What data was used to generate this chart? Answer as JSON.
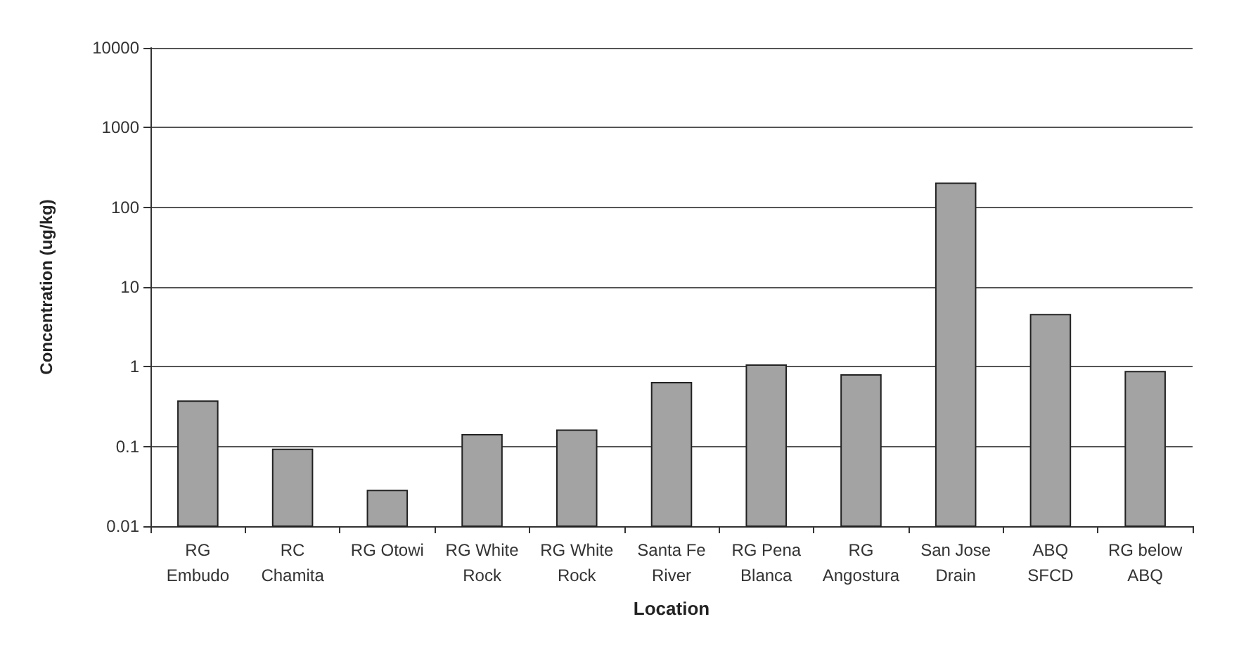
{
  "chart_data": {
    "type": "bar",
    "xlabel": "Location",
    "ylabel": "Concentration (ug/kg)",
    "categories": [
      "RG\nEmbudo",
      "RC\nChamita",
      "RG Otowi",
      "RG White\nRock",
      "RG White\nRock",
      "Santa Fe\nRiver",
      "RG Pena\nBlanca",
      "RG\nAngostura",
      "San Jose\nDrain",
      "ABQ\nSFCD",
      "RG below\nABQ"
    ],
    "values": [
      0.37,
      0.092,
      0.028,
      0.14,
      0.16,
      0.63,
      1.05,
      0.79,
      200,
      4.5,
      0.87
    ],
    "color": "#a3a3a3",
    "log": true,
    "ylim": [
      0.01,
      10000
    ],
    "yticks": [
      0.01,
      0.1,
      1,
      10,
      100,
      1000,
      10000
    ],
    "grid": "y"
  }
}
